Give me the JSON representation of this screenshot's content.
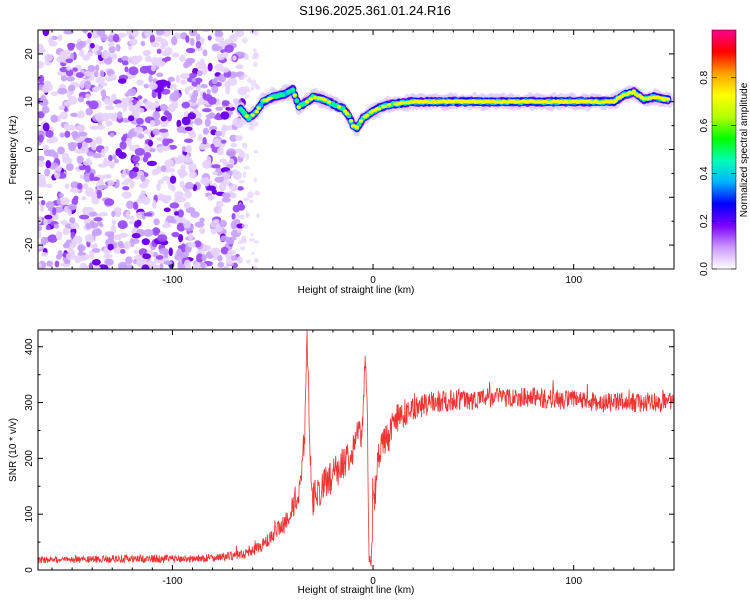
{
  "figure": {
    "title": "S196.2025.361.01.24.R16"
  },
  "chart_data": [
    {
      "type": "heatmap",
      "name": "spectrogram",
      "xlabel": "Height of straight line (km)",
      "ylabel": "Frequency (Hz)",
      "xlim": [
        -167,
        150
      ],
      "ylim": [
        -25,
        25
      ],
      "xticks": [
        -100,
        0,
        100
      ],
      "xtick_labels": [
        "-100",
        "0",
        "100"
      ],
      "yticks": [
        -20,
        -10,
        0,
        10,
        20
      ],
      "ytick_labels": [
        "-20",
        "-10",
        "0",
        "10",
        "20"
      ],
      "noise_region_x": [
        -167,
        -67
      ],
      "signal_ridge": {
        "x": [
          -67,
          -62,
          -58,
          -55,
          -50,
          -45,
          -42,
          -40,
          -37,
          -33,
          -30,
          -25,
          -20,
          -15,
          -12,
          -10,
          -8,
          -5,
          0,
          5,
          10,
          20,
          30,
          40,
          50,
          60,
          80,
          100,
          120,
          125,
          130,
          135,
          140,
          145,
          148
        ],
        "freq_hz": [
          9,
          6.5,
          8,
          10,
          11,
          11.5,
          12,
          12.5,
          9,
          10,
          11,
          10.5,
          9.5,
          8.5,
          7,
          5,
          4.5,
          6.5,
          8,
          9,
          9.5,
          10,
          10,
          10,
          10,
          10,
          10,
          10,
          10,
          11.5,
          12,
          10.5,
          11,
          10.5,
          10.5
        ]
      },
      "colorbar": {
        "label": "Normalized spectral amplitude",
        "range": [
          0,
          1
        ],
        "ticks": [
          0.0,
          0.2,
          0.4,
          0.6,
          0.8
        ],
        "tick_labels": [
          "0.0",
          "0.2",
          "0.4",
          "0.6",
          "0.8"
        ],
        "colors": [
          "#ffffff",
          "#cc99ff",
          "#7b00ff",
          "#0000ff",
          "#00b4ff",
          "#00ffb4",
          "#00ff00",
          "#b4ff00",
          "#ffff00",
          "#ffa000",
          "#ff0000",
          "#ff0090"
        ]
      }
    },
    {
      "type": "line",
      "name": "snr",
      "xlabel": "Height of straight line (km)",
      "ylabel": "SNR (10 * v/v)",
      "xlim": [
        -167,
        150
      ],
      "ylim": [
        0,
        430
      ],
      "xticks": [
        -100,
        0,
        100
      ],
      "xtick_labels": [
        "-100",
        "0",
        "100"
      ],
      "yticks": [
        0,
        100,
        200,
        300,
        400
      ],
      "ytick_labels": [
        "0",
        "100",
        "200",
        "300",
        "400"
      ],
      "line_color": "#ee3333",
      "x": [
        -167,
        -150,
        -130,
        -110,
        -90,
        -80,
        -70,
        -65,
        -60,
        -55,
        -50,
        -45,
        -40,
        -36,
        -34,
        -33,
        -32,
        -31,
        -30,
        -25,
        -20,
        -15,
        -10,
        -8,
        -6,
        -5,
        -4,
        -3,
        -2,
        -1,
        0,
        2,
        5,
        10,
        15,
        20,
        30,
        40,
        50,
        60,
        70,
        80,
        90,
        100,
        110,
        120,
        130,
        140,
        150
      ],
      "y": [
        18,
        18,
        20,
        20,
        20,
        22,
        25,
        28,
        35,
        45,
        60,
        80,
        110,
        150,
        250,
        420,
        300,
        180,
        130,
        150,
        170,
        190,
        220,
        240,
        250,
        260,
        380,
        300,
        30,
        5,
        120,
        180,
        220,
        260,
        280,
        290,
        300,
        305,
        305,
        310,
        310,
        310,
        305,
        305,
        300,
        300,
        300,
        300,
        300
      ],
      "noise_amplitude": [
        6,
        6,
        7,
        7,
        7,
        7,
        8,
        9,
        10,
        12,
        15,
        18,
        22,
        25,
        25,
        10,
        30,
        30,
        30,
        30,
        30,
        30,
        30,
        30,
        30,
        30,
        20,
        40,
        20,
        5,
        40,
        40,
        35,
        30,
        25,
        22,
        20,
        20,
        18,
        18,
        18,
        18,
        18,
        18,
        18,
        18,
        18,
        18,
        18
      ]
    }
  ]
}
